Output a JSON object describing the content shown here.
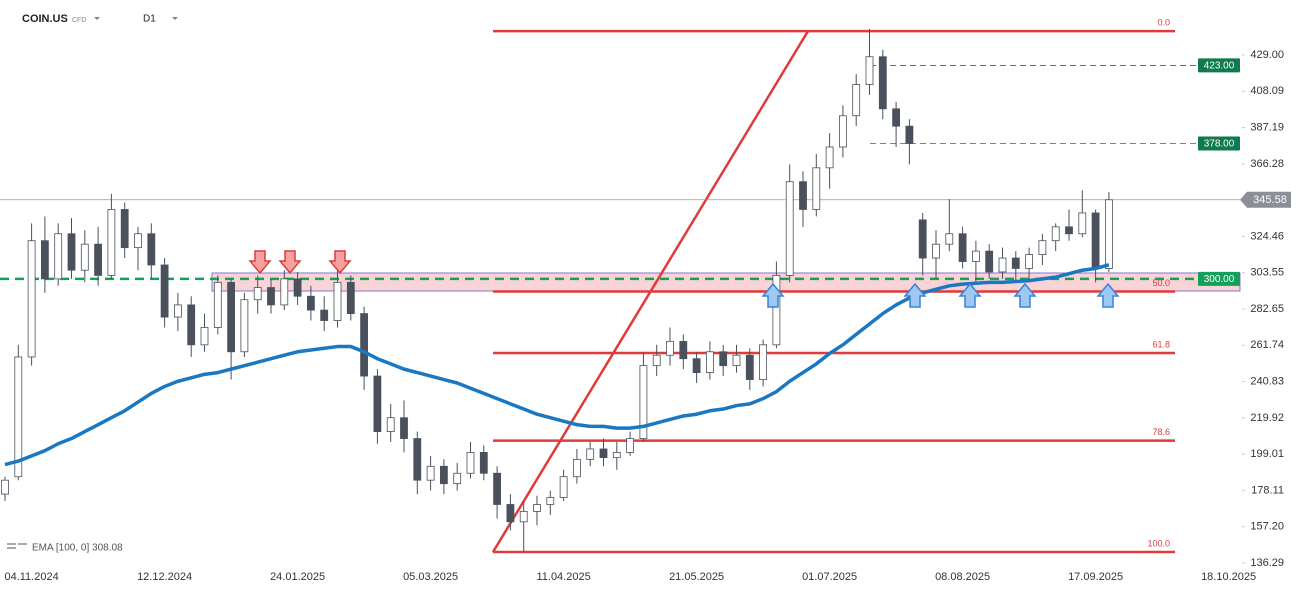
{
  "chart_data": {
    "type": "candlestick",
    "symbol": "COIN.US",
    "instrument": "CFD",
    "interval": "D1",
    "ema_label": "EMA [100, 0] 308.08",
    "ylim": [
      133.4,
      460.7
    ],
    "yticks": [
      {
        "value": 157.2,
        "label": "157.20"
      },
      178.11,
      199.01,
      219.92,
      240.83,
      261.74,
      282.65,
      303.55,
      324.46,
      366.28,
      387.19,
      408.09,
      {
        "value": 429,
        "label": "429.00"
      },
      136.29
    ],
    "grid": false,
    "categories": [
      null,
      null,
      "04.11.2024",
      null,
      null,
      null,
      null,
      null,
      null,
      null,
      null,
      null,
      "12.12.2024",
      null,
      null,
      null,
      null,
      null,
      null,
      null,
      null,
      null,
      "24.01.2025",
      null,
      null,
      null,
      null,
      null,
      null,
      null,
      null,
      null,
      "05.03.2025",
      null,
      null,
      null,
      null,
      null,
      null,
      null,
      null,
      null,
      "11.04.2025",
      null,
      null,
      null,
      null,
      null,
      null,
      null,
      null,
      null,
      "21.05.2025",
      null,
      null,
      null,
      null,
      null,
      null,
      null,
      null,
      null,
      "01.07.2025",
      null,
      null,
      null,
      null,
      null,
      null,
      null,
      null,
      null,
      "08.08.2025",
      null,
      null,
      null,
      null,
      null,
      null,
      null,
      null,
      null,
      "17.09.2025",
      null,
      null,
      null,
      null,
      null,
      null,
      null,
      null,
      null,
      "18.10.2025"
    ],
    "open": [
      176,
      186,
      255,
      322,
      300,
      326,
      305,
      320,
      302,
      340,
      318,
      326,
      308,
      278,
      285,
      262,
      272,
      298,
      258,
      288,
      295,
      285,
      300,
      290,
      282,
      276,
      298,
      280,
      244,
      212,
      220,
      208,
      184,
      192,
      182,
      188,
      200,
      188,
      170,
      160,
      166,
      170,
      174,
      186,
      196,
      202,
      197,
      200,
      208,
      250,
      256,
      264,
      254,
      246,
      258,
      250,
      256,
      242,
      262,
      302,
      356,
      340,
      364,
      376,
      394,
      412,
      428,
      398,
      388,
      334,
      312,
      320,
      326,
      310,
      316,
      304,
      312,
      306,
      314,
      322,
      330,
      326,
      338,
      306,
      null,
      null,
      null,
      null,
      null,
      null,
      null,
      null,
      null
    ],
    "high": [
      186,
      262,
      332,
      336,
      332,
      335,
      328,
      330,
      349,
      344,
      330,
      332,
      312,
      292,
      290,
      280,
      302,
      300,
      292,
      302,
      300,
      305,
      304,
      296,
      290,
      305,
      302,
      284,
      248,
      228,
      230,
      212,
      198,
      196,
      194,
      206,
      204,
      192,
      176,
      172,
      175,
      178,
      190,
      202,
      206,
      208,
      206,
      212,
      258,
      262,
      272,
      268,
      258,
      264,
      262,
      262,
      260,
      265,
      310,
      366,
      362,
      372,
      384,
      400,
      418,
      444,
      432,
      402,
      392,
      338,
      328,
      346,
      330,
      322,
      320,
      318,
      316,
      318,
      326,
      332,
      340,
      351,
      340,
      350,
      null,
      null,
      null,
      null,
      null,
      null,
      null,
      null,
      null
    ],
    "low": [
      172,
      184,
      250,
      292,
      296,
      300,
      298,
      296,
      300,
      312,
      305,
      300,
      272,
      270,
      255,
      258,
      268,
      242,
      255,
      280,
      280,
      282,
      285,
      276,
      270,
      272,
      276,
      236,
      205,
      206,
      200,
      176,
      178,
      176,
      178,
      185,
      184,
      162,
      155,
      143,
      158,
      164,
      172,
      182,
      192,
      192,
      190,
      198,
      206,
      244,
      250,
      248,
      240,
      242,
      244,
      246,
      236,
      238,
      260,
      298,
      330,
      336,
      352,
      370,
      388,
      406,
      392,
      376,
      366,
      302,
      300,
      316,
      306,
      298,
      300,
      300,
      298,
      300,
      308,
      316,
      322,
      324,
      298,
      304,
      null,
      null,
      null,
      null,
      null,
      null,
      null,
      null,
      null
    ],
    "close": [
      184,
      255,
      322,
      300,
      326,
      305,
      320,
      302,
      340,
      318,
      326,
      308,
      278,
      285,
      262,
      272,
      298,
      258,
      288,
      295,
      285,
      300,
      290,
      282,
      276,
      298,
      280,
      244,
      212,
      220,
      208,
      184,
      192,
      182,
      188,
      200,
      188,
      170,
      160,
      166,
      170,
      174,
      186,
      196,
      202,
      197,
      200,
      208,
      250,
      256,
      264,
      254,
      246,
      258,
      250,
      256,
      242,
      262,
      302,
      356,
      340,
      364,
      376,
      394,
      412,
      428,
      398,
      388,
      378,
      312,
      320,
      326,
      310,
      316,
      304,
      312,
      306,
      314,
      322,
      330,
      326,
      338,
      306,
      345.58,
      null,
      null,
      null,
      null,
      null,
      null,
      null,
      null,
      null
    ],
    "ema": [
      193,
      195,
      198,
      201,
      205,
      208,
      212,
      216,
      220,
      224,
      229,
      234,
      238,
      241,
      243,
      245,
      246,
      248,
      250,
      252,
      254,
      256,
      258,
      259,
      260,
      261,
      261,
      258,
      254,
      251,
      248,
      246,
      244,
      242,
      240,
      237,
      234,
      231,
      228,
      225,
      222,
      220,
      218,
      216,
      215,
      215,
      214,
      214,
      215,
      217,
      219,
      221,
      222,
      224,
      225,
      227,
      228,
      231,
      235,
      241,
      246,
      251,
      257,
      262,
      268,
      274,
      280,
      285,
      289,
      292,
      294,
      296,
      297,
      297.5,
      298,
      298,
      298.5,
      299,
      300,
      301,
      303,
      305,
      306,
      308.08,
      null,
      null,
      null,
      null,
      null,
      null,
      null,
      null,
      null
    ],
    "ema_color": "#1a78c2",
    "up_color": "#ffffff",
    "down_color": "#4a505c",
    "zone": [
      293,
      303.4
    ],
    "support": {
      "label": "300.00",
      "value": 300,
      "color": "#14a05a"
    },
    "targets": [
      {
        "label": "423.00",
        "value": 423
      },
      {
        "label": "378.00",
        "value": 378
      }
    ],
    "last_price": {
      "label": "345.58",
      "value": 345.58
    },
    "fib_color": "#e03a3a",
    "fib_levels": [
      {
        "label": "0.0",
        "value": 442.8
      },
      {
        "label": "50.0",
        "value": 292.7
      },
      {
        "label": "61.8",
        "value": 257.3
      },
      {
        "label": "78.6",
        "value": 206.8
      },
      {
        "label": "100.0",
        "value": 142.6
      }
    ]
  }
}
